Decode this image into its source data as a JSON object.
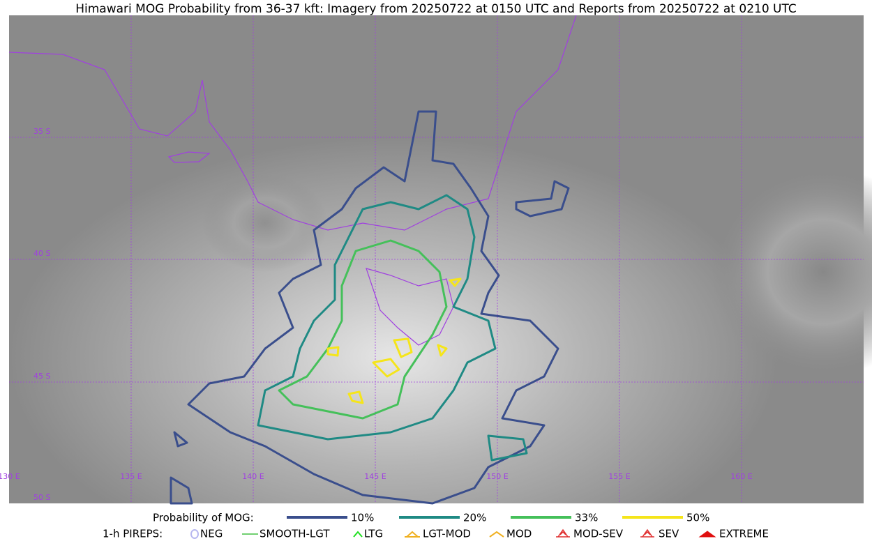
{
  "title": "Himawari MOG Probability from 36-37 kft: Imagery from 20250722 at 0150 UTC and Reports from 20250722 at 0210 UTC",
  "map": {
    "lat_labels": [
      "35 S",
      "40 S",
      "45 S",
      "50 S"
    ],
    "lon_labels": [
      "130 E",
      "135 E",
      "140 E",
      "145 E",
      "150 E",
      "155 E",
      "160 E"
    ]
  },
  "legend": {
    "probability": {
      "label": "Probability of MOG:",
      "items": [
        {
          "label": "10%",
          "color": "#3a4e8c"
        },
        {
          "label": "20%",
          "color": "#1f8a84"
        },
        {
          "label": "33%",
          "color": "#45c05a"
        },
        {
          "label": "50%",
          "color": "#f5e51a"
        }
      ]
    },
    "pireps": {
      "label": "1-h PIREPS:",
      "items": [
        {
          "label": "NEG",
          "color": "#b8b8f0"
        },
        {
          "label": "SMOOTH-LGT",
          "color": "#40c040"
        },
        {
          "label": "LTG",
          "color": "#20e020"
        },
        {
          "label": "LGT-MOD",
          "color": "#f0b020"
        },
        {
          "label": "MOD",
          "color": "#f0b020"
        },
        {
          "label": "MOD-SEV",
          "color": "#e03030"
        },
        {
          "label": "SEV",
          "color": "#e03030"
        },
        {
          "label": "EXTREME",
          "color": "#e01010"
        }
      ]
    }
  }
}
